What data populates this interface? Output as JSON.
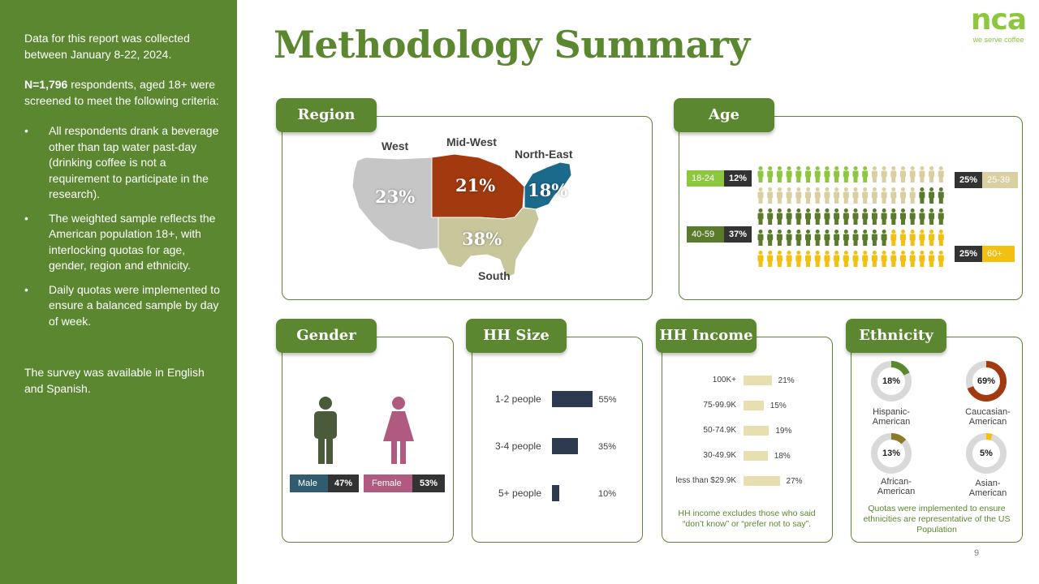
{
  "sidebar": {
    "dates": "Data for this report was collected between January 8-22, 2024.",
    "n_bold": "N=1,796",
    "n_rest": " respondents, aged 18+ were screened to meet the following criteria:",
    "bullets": [
      "All respondents drank a beverage other than tap water past-day (drinking coffee is not a requirement to participate in the research).",
      "The weighted sample reflects the American population 18+, with interlocking quotas for age, gender, region and ethnicity.",
      "Daily quotas were implemented to ensure a balanced sample by day of week."
    ],
    "language": "The survey was available in English and Spanish."
  },
  "title": "Methodology Summary",
  "logo": {
    "mark": "nca",
    "tagline": "we serve coffee"
  },
  "page_number": "9",
  "colors": {
    "green": "#5a8730",
    "light_green": "#8dc63f",
    "region_west": "#c6c6c6",
    "region_midwest": "#a2390f",
    "region_northeast": "#1b6a8c",
    "region_south": "#c8c79c",
    "age_18_24": "#8dc63f",
    "age_25_39": "#d9cfa0",
    "age_40_59": "#5a7a2c",
    "age_60_plus": "#f2c010",
    "male": "#2f5c6e",
    "female": "#b05a80",
    "hh_size_bar": "#2e3a4f",
    "hh_income_bar": "#e8dfb0",
    "donut_track": "#d9d9d9",
    "hispanic": "#5a8730",
    "caucasian": "#a2390f",
    "african": "#8a7a2a",
    "asian": "#f2c010"
  },
  "chart_data": [
    {
      "type": "map",
      "title": "Region",
      "regions": [
        {
          "name": "West",
          "value": 23,
          "label": "23%"
        },
        {
          "name": "Mid-West",
          "value": 21,
          "label": "21%"
        },
        {
          "name": "North-East",
          "value": 18,
          "label": "18%"
        },
        {
          "name": "South",
          "value": 38,
          "label": "38%"
        }
      ]
    },
    {
      "type": "pictogram",
      "title": "Age",
      "total_icons": 100,
      "groups": [
        {
          "name": "18-24",
          "value": 12,
          "label": "12%"
        },
        {
          "name": "25-39",
          "value": 25,
          "label": "25%"
        },
        {
          "name": "40-59",
          "value": 37,
          "label": "37%"
        },
        {
          "name": "60+",
          "value": 25,
          "label": "25%"
        }
      ]
    },
    {
      "type": "pictogram",
      "title": "Gender",
      "groups": [
        {
          "name": "Male",
          "value": 47,
          "label": "47%"
        },
        {
          "name": "Female",
          "value": 53,
          "label": "53%"
        }
      ]
    },
    {
      "type": "bar",
      "orientation": "horizontal",
      "title": "HH Size",
      "categories": [
        "1-2 people",
        "3-4 people",
        "5+ people"
      ],
      "values": [
        55,
        35,
        10
      ],
      "labels": [
        "55%",
        "35%",
        "10%"
      ]
    },
    {
      "type": "bar",
      "orientation": "horizontal",
      "title": "HH Income",
      "categories": [
        "100K+",
        "75-99.9K",
        "50-74.9K",
        "30-49.9K",
        "less than $29.9K"
      ],
      "values": [
        21,
        15,
        19,
        18,
        27
      ],
      "labels": [
        "21%",
        "15%",
        "19%",
        "18%",
        "27%"
      ],
      "note": "HH income excludes those who said “don’t know” or “prefer not to say”."
    },
    {
      "type": "pie",
      "title": "Ethnicity",
      "slices": [
        {
          "name": "Hispanic-American",
          "value": 18,
          "label": "18%"
        },
        {
          "name": "Caucasian-American",
          "value": 69,
          "label": "69%"
        },
        {
          "name": "African-American",
          "value": 13,
          "label": "13%"
        },
        {
          "name": "Asian-American",
          "value": 5,
          "label": "5%"
        }
      ],
      "note": "Quotas were implemented to ensure ethnicities are representative of the US Population"
    }
  ],
  "labels": {
    "region_tab": "Region",
    "age_tab": "Age",
    "gender_tab": "Gender",
    "hh_size_tab": "HH Size",
    "hh_income_tab": "HH Income",
    "ethnicity_tab": "Ethnicity",
    "west": "West",
    "midwest": "Mid-West",
    "northeast": "North-East",
    "south": "South",
    "hispanic_1": "Hispanic-",
    "hispanic_2": "American",
    "caucasian_1": "Caucasian-",
    "caucasian_2": "American",
    "african_1": "African-",
    "african_2": "American",
    "asian_1": "Asian-",
    "asian_2": "American"
  }
}
